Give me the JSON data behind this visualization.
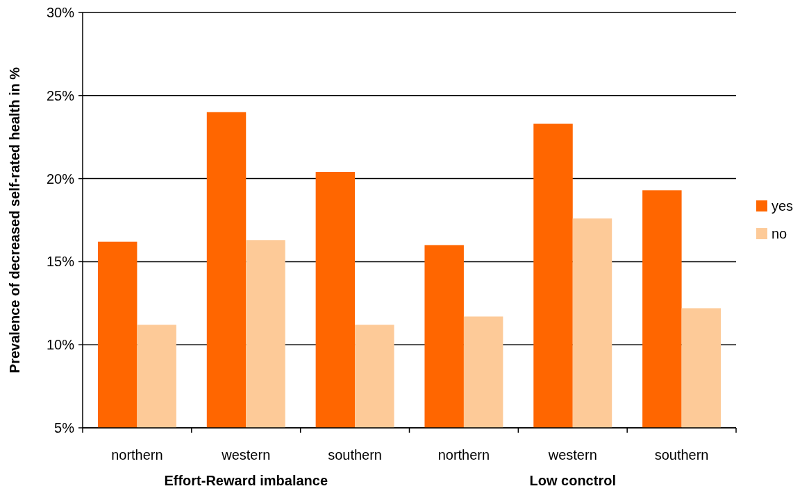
{
  "chart_data": {
    "type": "bar",
    "ylabel": "Prevalence of decreased self-rated health in %",
    "categories": [
      "northern",
      "western",
      "southern",
      "northern",
      "western",
      "southern"
    ],
    "series": [
      {
        "name": "yes",
        "color": "#ff6600",
        "values": [
          16.2,
          24.0,
          20.4,
          16.0,
          23.3,
          19.3
        ]
      },
      {
        "name": "no",
        "color": "#fdca98",
        "values": [
          11.2,
          16.3,
          11.2,
          11.7,
          17.6,
          12.2
        ]
      }
    ],
    "ylim": [
      5,
      30
    ],
    "yticks": [
      {
        "value": 5,
        "label": "5%"
      },
      {
        "value": 10,
        "label": "10%"
      },
      {
        "value": 15,
        "label": "15%"
      },
      {
        "value": 20,
        "label": "20%"
      },
      {
        "value": 25,
        "label": "25%"
      },
      {
        "value": 30,
        "label": "30%"
      }
    ],
    "grid": "y",
    "legend": "right",
    "annotations": [
      "Effort-Reward imbalance",
      "Low conctrol"
    ]
  }
}
